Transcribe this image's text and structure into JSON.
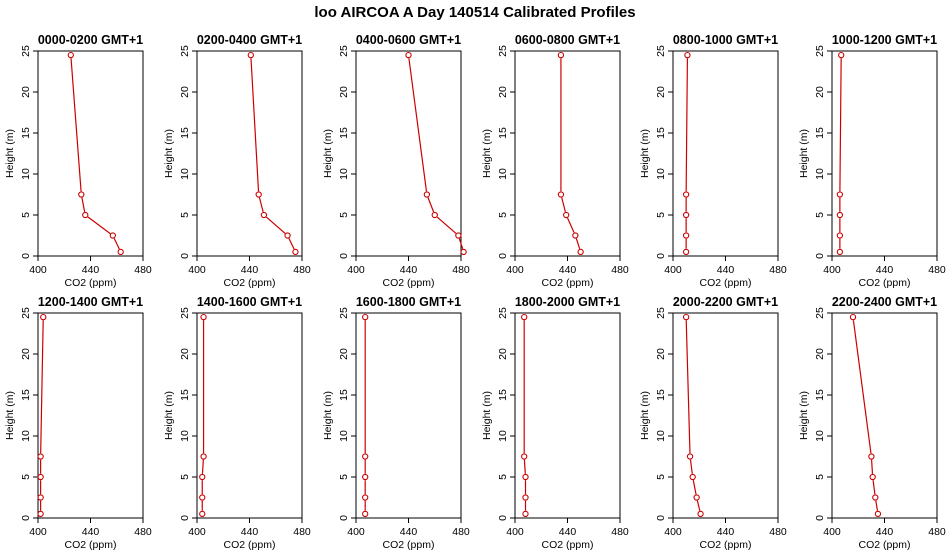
{
  "figure": {
    "title": "loo AIRCOA A  Day 140514  Calibrated Profiles"
  },
  "colors": {
    "series": "#cc0000",
    "axis": "#000000",
    "background": "#ffffff"
  },
  "chart_data": [
    {
      "type": "line",
      "title": "0000-0200 GMT+1",
      "xlabel": "CO2 (ppm)",
      "ylabel": "Height (m)",
      "xlim": [
        400,
        480
      ],
      "ylim": [
        0,
        25
      ],
      "xticks": [
        400,
        440,
        480
      ],
      "yticks": [
        0,
        5,
        10,
        15,
        20,
        25
      ],
      "grid": false,
      "series": [
        {
          "x": [
            463,
            457,
            436,
            433,
            425
          ],
          "y": [
            0.5,
            2.5,
            5,
            7.5,
            24.5
          ]
        }
      ]
    },
    {
      "type": "line",
      "title": "0200-0400 GMT+1",
      "xlabel": "CO2 (ppm)",
      "ylabel": "Height (m)",
      "xlim": [
        400,
        480
      ],
      "ylim": [
        0,
        25
      ],
      "xticks": [
        400,
        440,
        480
      ],
      "yticks": [
        0,
        5,
        10,
        15,
        20,
        25
      ],
      "grid": false,
      "series": [
        {
          "x": [
            475,
            469,
            451,
            447,
            441
          ],
          "y": [
            0.5,
            2.5,
            5,
            7.5,
            24.5
          ]
        }
      ]
    },
    {
      "type": "line",
      "title": "0400-0600 GMT+1",
      "xlabel": "CO2 (ppm)",
      "ylabel": "Height (m)",
      "xlim": [
        400,
        480
      ],
      "ylim": [
        0,
        25
      ],
      "xticks": [
        400,
        440,
        480
      ],
      "yticks": [
        0,
        5,
        10,
        15,
        20,
        25
      ],
      "grid": false,
      "series": [
        {
          "x": [
            482,
            478,
            460,
            454,
            440
          ],
          "y": [
            0.5,
            2.5,
            5,
            7.5,
            24.5
          ]
        }
      ]
    },
    {
      "type": "line",
      "title": "0600-0800 GMT+1",
      "xlabel": "CO2 (ppm)",
      "ylabel": "Height (m)",
      "xlim": [
        400,
        480
      ],
      "ylim": [
        0,
        25
      ],
      "xticks": [
        400,
        440,
        480
      ],
      "yticks": [
        0,
        5,
        10,
        15,
        20,
        25
      ],
      "grid": false,
      "series": [
        {
          "x": [
            450,
            446,
            439,
            435,
            435
          ],
          "y": [
            0.5,
            2.5,
            5,
            7.5,
            24.5
          ]
        }
      ]
    },
    {
      "type": "line",
      "title": "0800-1000 GMT+1",
      "xlabel": "CO2 (ppm)",
      "ylabel": "Height (m)",
      "xlim": [
        400,
        480
      ],
      "ylim": [
        0,
        25
      ],
      "xticks": [
        400,
        440,
        480
      ],
      "yticks": [
        0,
        5,
        10,
        15,
        20,
        25
      ],
      "grid": false,
      "series": [
        {
          "x": [
            410,
            410,
            410,
            410,
            411
          ],
          "y": [
            0.5,
            2.5,
            5,
            7.5,
            24.5
          ]
        }
      ]
    },
    {
      "type": "line",
      "title": "1000-1200 GMT+1",
      "xlabel": "CO2 (ppm)",
      "ylabel": "Height (m)",
      "xlim": [
        400,
        480
      ],
      "ylim": [
        0,
        25
      ],
      "xticks": [
        400,
        440,
        480
      ],
      "yticks": [
        0,
        5,
        10,
        15,
        20,
        25
      ],
      "grid": false,
      "series": [
        {
          "x": [
            406,
            406,
            406,
            406,
            407
          ],
          "y": [
            0.5,
            2.5,
            5,
            7.5,
            24.5
          ]
        }
      ]
    },
    {
      "type": "line",
      "title": "1200-1400 GMT+1",
      "xlabel": "CO2 (ppm)",
      "ylabel": "Height (m)",
      "xlim": [
        400,
        480
      ],
      "ylim": [
        0,
        25
      ],
      "xticks": [
        400,
        440,
        480
      ],
      "yticks": [
        0,
        5,
        10,
        15,
        20,
        25
      ],
      "grid": false,
      "series": [
        {
          "x": [
            402,
            402,
            402,
            402,
            404
          ],
          "y": [
            0.5,
            2.5,
            5,
            7.5,
            24.5
          ]
        }
      ]
    },
    {
      "type": "line",
      "title": "1400-1600 GMT+1",
      "xlabel": "CO2 (ppm)",
      "ylabel": "Height (m)",
      "xlim": [
        400,
        480
      ],
      "ylim": [
        0,
        25
      ],
      "xticks": [
        400,
        440,
        480
      ],
      "yticks": [
        0,
        5,
        10,
        15,
        20,
        25
      ],
      "grid": false,
      "series": [
        {
          "x": [
            404,
            404,
            404,
            405,
            405
          ],
          "y": [
            0.5,
            2.5,
            5,
            7.5,
            24.5
          ]
        }
      ]
    },
    {
      "type": "line",
      "title": "1600-1800 GMT+1",
      "xlabel": "CO2 (ppm)",
      "ylabel": "Height (m)",
      "xlim": [
        400,
        480
      ],
      "ylim": [
        0,
        25
      ],
      "xticks": [
        400,
        440,
        480
      ],
      "yticks": [
        0,
        5,
        10,
        15,
        20,
        25
      ],
      "grid": false,
      "series": [
        {
          "x": [
            407,
            407,
            407,
            407,
            407
          ],
          "y": [
            0.5,
            2.5,
            5,
            7.5,
            24.5
          ]
        }
      ]
    },
    {
      "type": "line",
      "title": "1800-2000 GMT+1",
      "xlabel": "CO2 (ppm)",
      "ylabel": "Height (m)",
      "xlim": [
        400,
        480
      ],
      "ylim": [
        0,
        25
      ],
      "xticks": [
        400,
        440,
        480
      ],
      "yticks": [
        0,
        5,
        10,
        15,
        20,
        25
      ],
      "grid": false,
      "series": [
        {
          "x": [
            408,
            408,
            408,
            407,
            407
          ],
          "y": [
            0.5,
            2.5,
            5,
            7.5,
            24.5
          ]
        }
      ]
    },
    {
      "type": "line",
      "title": "2000-2200 GMT+1",
      "xlabel": "CO2 (ppm)",
      "ylabel": "Height (m)",
      "xlim": [
        400,
        480
      ],
      "ylim": [
        0,
        25
      ],
      "xticks": [
        400,
        440,
        480
      ],
      "yticks": [
        0,
        5,
        10,
        15,
        20,
        25
      ],
      "grid": false,
      "series": [
        {
          "x": [
            421,
            418,
            415,
            413,
            410
          ],
          "y": [
            0.5,
            2.5,
            5,
            7.5,
            24.5
          ]
        }
      ]
    },
    {
      "type": "line",
      "title": "2200-2400 GMT+1",
      "xlabel": "CO2 (ppm)",
      "ylabel": "Height (m)",
      "xlim": [
        400,
        480
      ],
      "ylim": [
        0,
        25
      ],
      "xticks": [
        400,
        440,
        480
      ],
      "yticks": [
        0,
        5,
        10,
        15,
        20,
        25
      ],
      "grid": false,
      "series": [
        {
          "x": [
            435,
            433,
            431,
            430,
            416
          ],
          "y": [
            0.5,
            2.5,
            5,
            7.5,
            24.5
          ]
        }
      ]
    }
  ]
}
